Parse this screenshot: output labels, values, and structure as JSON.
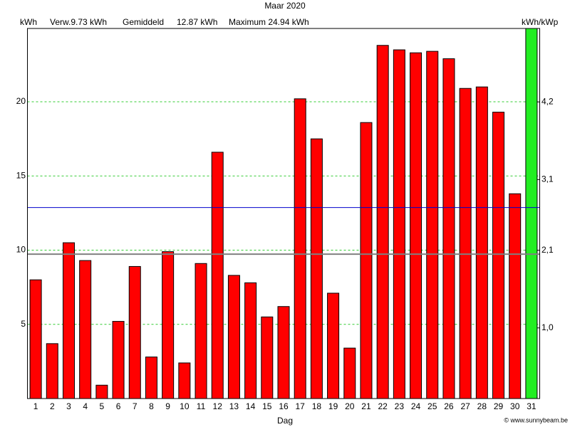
{
  "chart_data": {
    "type": "bar",
    "title": "Maar 2020",
    "x_label": "Dag",
    "y_label": "kWh",
    "y2_label": "kWh/kWp",
    "footer": "© www.sunnybeam.be",
    "categories": [
      "1",
      "2",
      "3",
      "4",
      "5",
      "6",
      "7",
      "8",
      "9",
      "10",
      "11",
      "12",
      "13",
      "14",
      "15",
      "16",
      "17",
      "18",
      "19",
      "20",
      "21",
      "22",
      "23",
      "24",
      "25",
      "26",
      "27",
      "28",
      "29",
      "30",
      "31"
    ],
    "values": [
      8.0,
      3.7,
      10.5,
      9.3,
      0.9,
      5.2,
      8.9,
      2.8,
      9.9,
      2.4,
      9.1,
      16.6,
      8.3,
      7.8,
      5.5,
      6.2,
      20.2,
      17.5,
      7.1,
      3.4,
      18.6,
      23.8,
      23.5,
      23.3,
      23.4,
      22.9,
      20.9,
      21.0,
      19.3,
      13.8,
      24.94
    ],
    "colors": [
      "#ff0000",
      "#ff0000",
      "#ff0000",
      "#ff0000",
      "#ff0000",
      "#ff0000",
      "#ff0000",
      "#ff0000",
      "#ff0000",
      "#ff0000",
      "#ff0000",
      "#ff0000",
      "#ff0000",
      "#ff0000",
      "#ff0000",
      "#ff0000",
      "#ff0000",
      "#ff0000",
      "#ff0000",
      "#ff0000",
      "#ff0000",
      "#ff0000",
      "#ff0000",
      "#ff0000",
      "#ff0000",
      "#ff0000",
      "#ff0000",
      "#ff0000",
      "#ff0000",
      "#ff0000",
      "#22ee22"
    ],
    "ylim": [
      0,
      24.94
    ],
    "yticks": [
      5,
      10,
      15,
      20
    ],
    "y2lim": [
      0,
      5.24
    ],
    "y2ticks": [
      {
        "value": 1.0,
        "label": "1,0"
      },
      {
        "value": 2.1,
        "label": "2,1"
      },
      {
        "value": 3.1,
        "label": "3,1"
      },
      {
        "value": 4.2,
        "label": "4,2"
      }
    ],
    "grid": true,
    "grid_color": "#33cc33",
    "reference_lines": [
      {
        "name": "Verw.9.73 kWh",
        "value": 9.73,
        "color": "#808080"
      },
      {
        "name": "Gemiddeld",
        "value_label": "12.87 kWh",
        "value": 12.87,
        "color": "#0000cc"
      }
    ],
    "annotation": {
      "text": "Maximum 24.94 kWh",
      "color": "#00dd00"
    }
  }
}
